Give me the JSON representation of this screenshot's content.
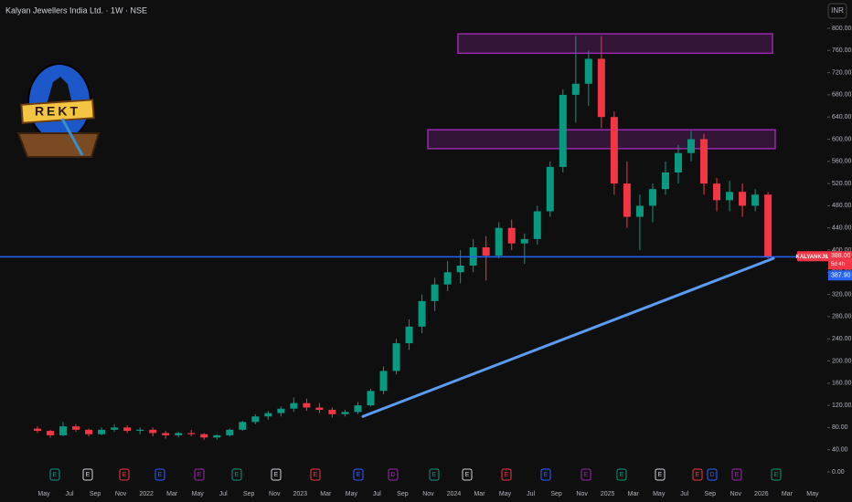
{
  "chart_data": {
    "type": "candlestick",
    "title": "Kalyan Jewellers India Ltd. · 1W · NSE",
    "currency": "INR",
    "logo_text": "REKT",
    "categories": [
      "May",
      "Jul",
      "Sep",
      "Nov",
      "2022",
      "Mar",
      "May",
      "Jul",
      "Sep",
      "Nov",
      "2023",
      "Mar",
      "May",
      "Jul",
      "Sep",
      "Nov",
      "2024",
      "Mar",
      "May",
      "Jul",
      "Sep",
      "Nov",
      "2025",
      "Mar",
      "May",
      "Jul",
      "Sep",
      "Nov",
      "2026",
      "Mar",
      "May"
    ],
    "ohlc": [
      [
        78,
        82,
        70,
        74
      ],
      [
        74,
        76,
        62,
        66
      ],
      [
        66,
        90,
        64,
        82
      ],
      [
        82,
        86,
        72,
        76
      ],
      [
        76,
        78,
        64,
        68
      ],
      [
        68,
        80,
        66,
        76
      ],
      [
        76,
        86,
        72,
        80
      ],
      [
        80,
        84,
        70,
        74
      ],
      [
        74,
        80,
        68,
        76
      ],
      [
        76,
        80,
        64,
        70
      ],
      [
        70,
        74,
        60,
        66
      ],
      [
        66,
        72,
        62,
        70
      ],
      [
        70,
        76,
        64,
        68
      ],
      [
        68,
        70,
        58,
        62
      ],
      [
        62,
        68,
        58,
        66
      ],
      [
        66,
        78,
        64,
        76
      ],
      [
        76,
        92,
        74,
        90
      ],
      [
        90,
        104,
        86,
        100
      ],
      [
        100,
        110,
        94,
        106
      ],
      [
        106,
        118,
        100,
        114
      ],
      [
        114,
        134,
        108,
        124
      ],
      [
        124,
        132,
        110,
        116
      ],
      [
        116,
        124,
        106,
        112
      ],
      [
        112,
        116,
        98,
        104
      ],
      [
        104,
        112,
        100,
        108
      ],
      [
        108,
        126,
        104,
        120
      ],
      [
        120,
        150,
        118,
        146
      ],
      [
        146,
        190,
        140,
        182
      ],
      [
        182,
        240,
        176,
        232
      ],
      [
        232,
        275,
        220,
        262
      ],
      [
        262,
        320,
        250,
        308
      ],
      [
        308,
        350,
        290,
        338
      ],
      [
        338,
        380,
        326,
        360
      ],
      [
        360,
        400,
        340,
        372
      ],
      [
        372,
        420,
        360,
        405
      ],
      [
        405,
        425,
        345,
        390
      ],
      [
        390,
        450,
        385,
        440
      ],
      [
        440,
        455,
        400,
        412
      ],
      [
        412,
        430,
        375,
        420
      ],
      [
        420,
        480,
        410,
        470
      ],
      [
        470,
        560,
        460,
        550
      ],
      [
        550,
        690,
        540,
        680
      ],
      [
        680,
        786,
        630,
        700
      ],
      [
        700,
        760,
        660,
        745
      ],
      [
        745,
        786,
        620,
        640
      ],
      [
        640,
        650,
        500,
        520
      ],
      [
        520,
        560,
        440,
        460
      ],
      [
        460,
        500,
        400,
        480
      ],
      [
        480,
        520,
        450,
        510
      ],
      [
        510,
        560,
        500,
        540
      ],
      [
        540,
        590,
        520,
        575
      ],
      [
        575,
        615,
        560,
        600
      ],
      [
        600,
        610,
        500,
        520
      ],
      [
        520,
        530,
        470,
        490
      ],
      [
        490,
        525,
        470,
        505
      ],
      [
        505,
        520,
        460,
        480
      ],
      [
        480,
        510,
        470,
        500
      ],
      [
        500,
        505,
        385,
        388
      ]
    ],
    "up_color": "#089981",
    "down_color": "#f23645",
    "ylim": [
      0,
      810
    ],
    "yticks": [
      {
        "value": 0,
        "label": "0.00"
      },
      {
        "value": 40,
        "label": "40.00"
      },
      {
        "value": 80,
        "label": "80.00"
      },
      {
        "value": 120,
        "label": "120.00"
      },
      {
        "value": 160,
        "label": "160.00"
      },
      {
        "value": 200,
        "label": "200.00"
      },
      {
        "value": 240,
        "label": "240.00"
      },
      {
        "value": 280,
        "label": "280.00"
      },
      {
        "value": 320,
        "label": "320.00"
      },
      {
        "value": 360,
        "label": "360.00"
      },
      {
        "value": 400,
        "label": "400.00"
      },
      {
        "value": 440,
        "label": "440.00"
      },
      {
        "value": 480,
        "label": "480.00"
      },
      {
        "value": 520,
        "label": "520.00"
      },
      {
        "value": 560,
        "label": "560.00"
      },
      {
        "value": 600,
        "label": "600.00"
      },
      {
        "value": 640,
        "label": "640.00"
      },
      {
        "value": 680,
        "label": "680.00"
      },
      {
        "value": 720,
        "label": "720.00"
      },
      {
        "value": 760,
        "label": "760.00"
      },
      {
        "value": 800,
        "label": "800.00"
      }
    ],
    "zones": [
      {
        "top": 790,
        "bottom": 755,
        "color": "#9c27b0"
      },
      {
        "top": 617,
        "bottom": 583,
        "color": "#9c27b0"
      }
    ],
    "trendline": [
      100,
      385
    ],
    "trendline_color": "#5b9cf6",
    "hline": 387.9,
    "hline_label": "387.90",
    "hline_color": "#2962ff",
    "symbol_label": "KALYANKJIL",
    "last_price": 388,
    "last_price_label": "388.00",
    "countdown": "5d 4h",
    "events": [
      "E",
      "E",
      "E",
      "E",
      "E",
      "E",
      "E",
      "E",
      "E",
      "D",
      "E",
      "E",
      "E",
      "E",
      "E",
      "E",
      "E",
      "E",
      "D",
      "E",
      "E"
    ]
  }
}
